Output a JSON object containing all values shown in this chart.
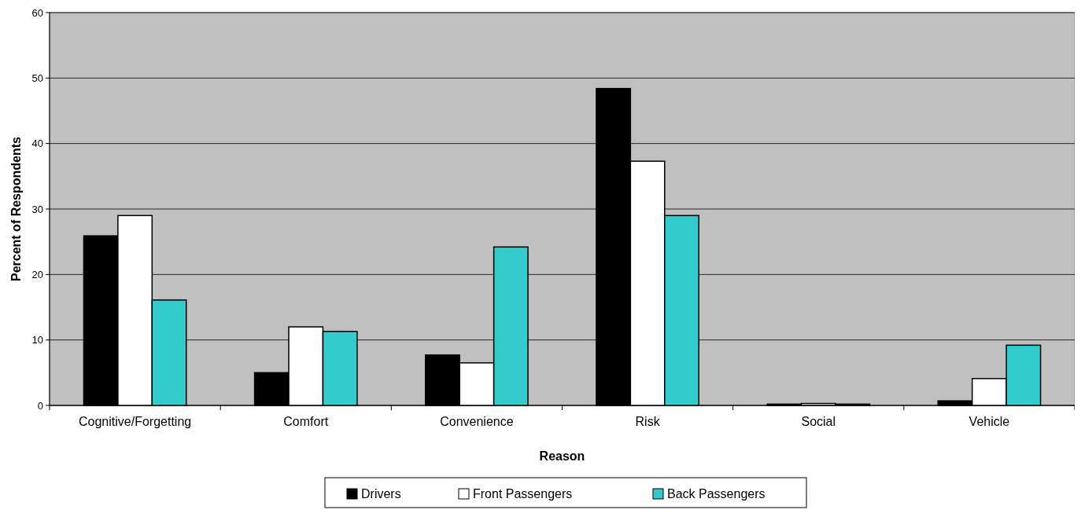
{
  "chart_data": {
    "type": "bar",
    "xlabel": "Reason",
    "ylabel": "Percent of Respondents",
    "categories": [
      "Cognitive/Forgetting",
      "Comfort",
      "Convenience",
      "Risk",
      "Social",
      "Vehicle"
    ],
    "series": [
      {
        "name": "Drivers",
        "color": "#000000",
        "values": [
          25.9,
          5,
          7.7,
          48.4,
          0.2,
          0.7
        ]
      },
      {
        "name": "Front Passengers",
        "color": "#ffffff",
        "values": [
          29,
          12,
          6.5,
          37.3,
          0.3,
          4.1
        ]
      },
      {
        "name": "Back Passengers",
        "color": "#33cccc",
        "values": [
          16.1,
          11.3,
          24.2,
          29,
          0.2,
          9.2
        ]
      }
    ],
    "ylim": [
      0,
      60
    ],
    "yticks": [
      0,
      10,
      20,
      30,
      40,
      50,
      60
    ],
    "grid": "y",
    "legend": "bottom"
  }
}
